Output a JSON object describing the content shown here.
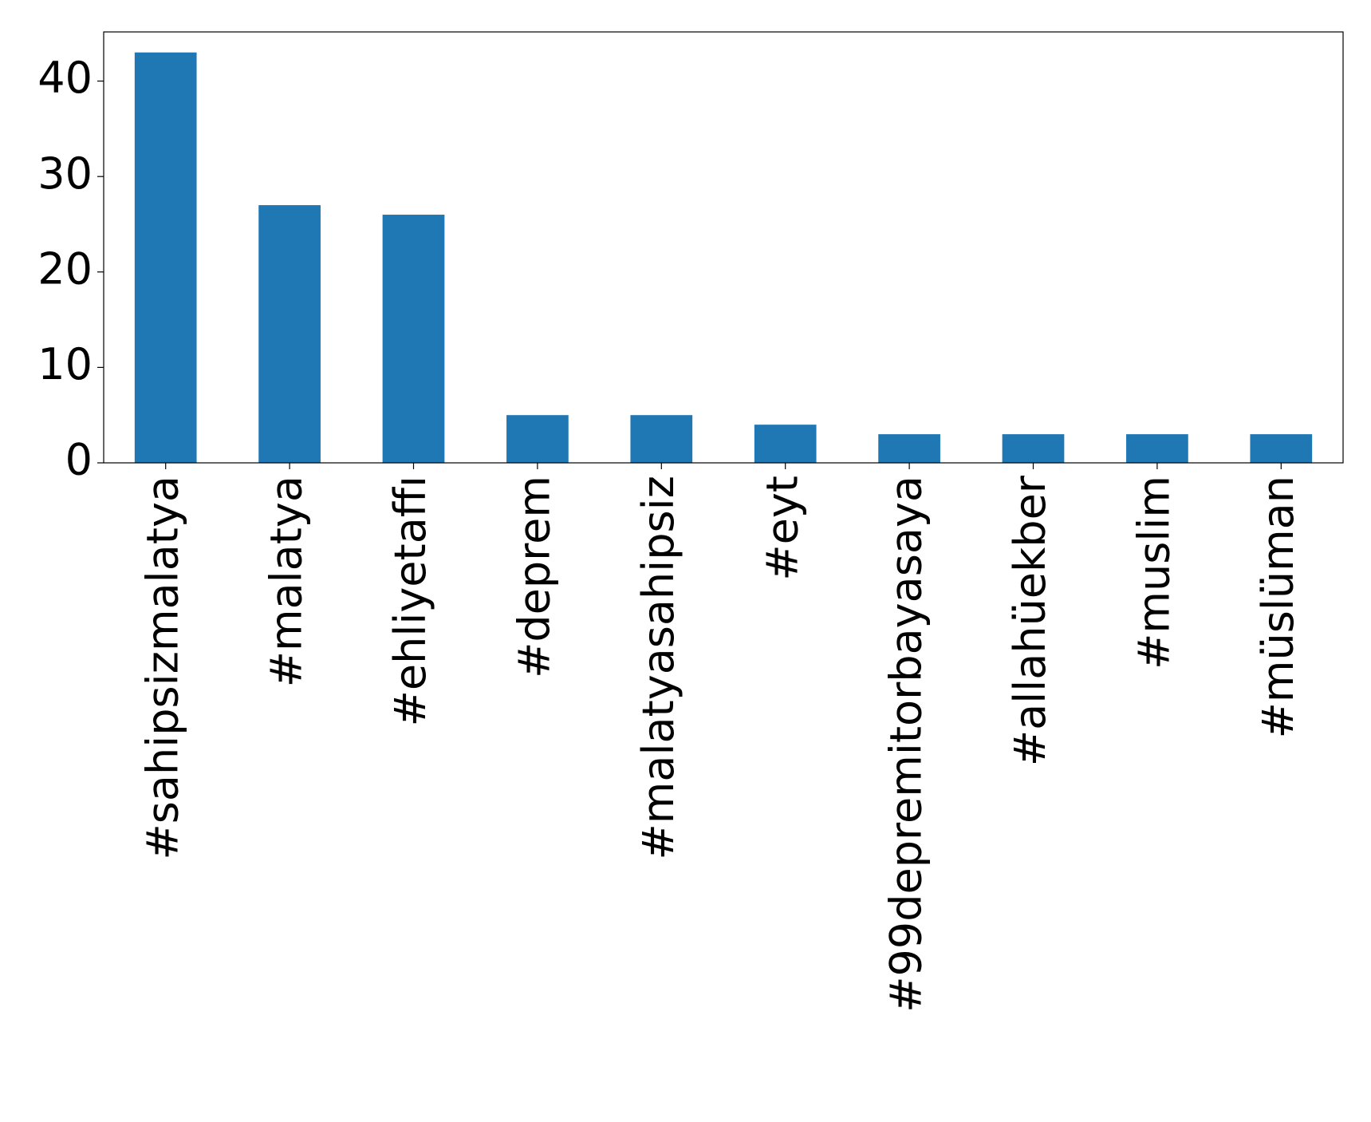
{
  "chart_data": {
    "type": "bar",
    "categories": [
      "#sahipsizmalatya",
      "#malatya",
      "#ehliyetaffı",
      "#deprem",
      "#malatyasahipsiz",
      "#eyt",
      "#99depremitorbayasaya",
      "#allahüekber",
      "#muslim",
      "#müslüman"
    ],
    "values": [
      43,
      27,
      26,
      5,
      5,
      4,
      3,
      3,
      3,
      3
    ],
    "color": "#1f77b4",
    "ylim": [
      0,
      45.15
    ],
    "yticks": [
      0,
      10,
      20,
      30,
      40
    ],
    "grid": false
  }
}
